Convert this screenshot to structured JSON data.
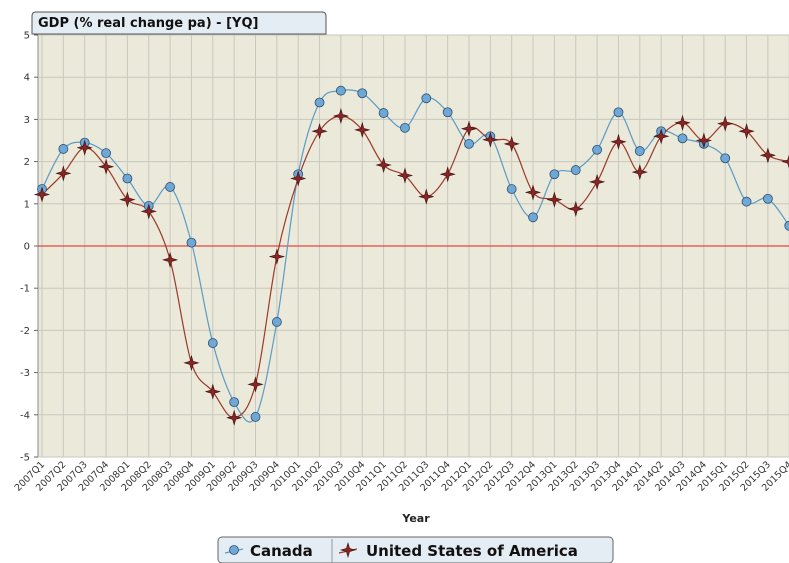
{
  "chart_data": {
    "type": "line",
    "title": "GDP (% real change pa) - [YQ]",
    "x_label": "Year",
    "categories": [
      "2007Q1",
      "2007Q2",
      "2007Q3",
      "2007Q4",
      "2008Q1",
      "2008Q2",
      "2008Q3",
      "2008Q4",
      "2009Q1",
      "2009Q2",
      "2009Q3",
      "2009Q4",
      "2010Q1",
      "2010Q2",
      "2010Q3",
      "2010Q4",
      "2011Q1",
      "2011Q2",
      "2011Q3",
      "2011Q4",
      "2012Q1",
      "2012Q2",
      "2012Q3",
      "2012Q4",
      "2013Q1",
      "2013Q2",
      "2013Q3",
      "2013Q4",
      "2014Q1",
      "2014Q2",
      "2014Q3",
      "2014Q4",
      "2015Q1",
      "2015Q2",
      "2015Q3",
      "2015Q4"
    ],
    "series": [
      {
        "name": "Canada",
        "color": "#5b9bc6",
        "marker": "circle",
        "values": [
          1.35,
          2.3,
          2.45,
          2.2,
          1.6,
          0.95,
          1.4,
          0.08,
          -2.3,
          -3.7,
          -4.05,
          -1.8,
          1.7,
          3.4,
          3.68,
          3.62,
          3.15,
          2.8,
          3.5,
          3.17,
          2.42,
          2.6,
          1.35,
          0.68,
          1.7,
          1.8,
          2.28,
          3.17,
          2.25,
          2.72,
          2.55,
          2.42,
          2.08,
          1.05,
          1.12,
          0.48
        ]
      },
      {
        "name": "United States of America",
        "color": "#9b3a2a",
        "marker": "star",
        "values": [
          1.22,
          1.72,
          2.33,
          1.88,
          1.1,
          0.82,
          -0.33,
          -2.77,
          -3.45,
          -4.07,
          -3.28,
          -0.25,
          1.6,
          2.72,
          3.08,
          2.75,
          1.92,
          1.67,
          1.17,
          1.7,
          2.78,
          2.52,
          2.42,
          1.27,
          1.1,
          0.88,
          1.52,
          2.47,
          1.75,
          2.6,
          2.92,
          2.5,
          2.9,
          2.72,
          2.15,
          2.0
        ]
      }
    ],
    "ylim": [
      -5,
      5
    ],
    "yticks": [
      -5,
      -4,
      -3,
      -2,
      -1,
      0,
      1,
      2,
      3,
      4,
      5
    ],
    "grid": true,
    "zero_line_color": "#e02020",
    "legend": "bottom"
  }
}
